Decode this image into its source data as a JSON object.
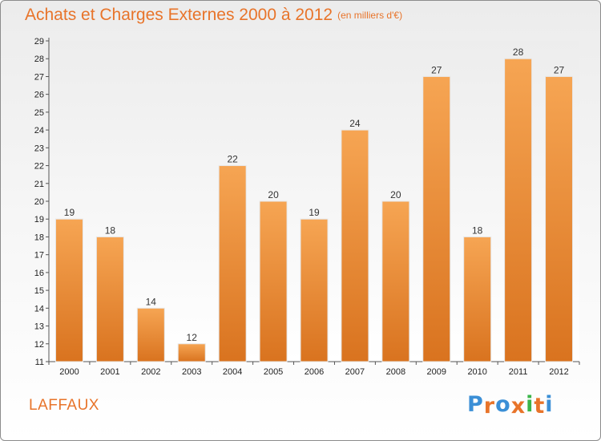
{
  "header": {
    "title": "Achats et Charges Externes 2000 à 2012",
    "unit": "(en milliers d'€)"
  },
  "footer": {
    "commune": "LAFFAUX",
    "logo": [
      "P",
      "r",
      "o",
      "x",
      "i",
      "t",
      "i"
    ]
  },
  "colors": {
    "accent": "#e8742a",
    "bar_top": "#f6a553",
    "bar_bottom": "#d9731f",
    "logo_letters": [
      "#3b8fd6",
      "#e8742a",
      "#3b8fd6",
      "#e8742a",
      "#3bb54a",
      "#e8742a",
      "#3b8fd6"
    ]
  },
  "chart_data": {
    "type": "bar",
    "title": "Achats et Charges Externes 2000 à 2012",
    "subtitle": "(en milliers d'€)",
    "xlabel": "",
    "ylabel": "",
    "categories": [
      "2000",
      "2001",
      "2002",
      "2003",
      "2004",
      "2005",
      "2006",
      "2007",
      "2008",
      "2009",
      "2010",
      "2011",
      "2012"
    ],
    "values": [
      19,
      18,
      14,
      12,
      22,
      20,
      19,
      24,
      20,
      27,
      18,
      28,
      27
    ],
    "ylim": [
      11,
      29
    ],
    "yticks": [
      11,
      12,
      13,
      14,
      15,
      16,
      17,
      18,
      19,
      20,
      21,
      22,
      23,
      24,
      25,
      26,
      27,
      28,
      29
    ],
    "grid": false,
    "legend": "none"
  }
}
